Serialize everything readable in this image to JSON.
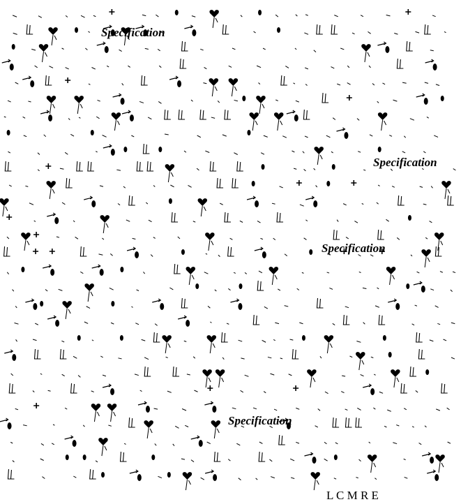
{
  "labels": {
    "spec_1": "Specification",
    "spec_2": "Specification",
    "spec_3": "Specification",
    "spec_4": "Specification"
  },
  "footer": {
    "text": "L   C  M  R E"
  },
  "colors": {
    "ink": "#000000",
    "background": "#ffffff"
  },
  "icons": [
    "heart-flower-icon",
    "arrow-bulb-icon",
    "bar-icon",
    "cross-icon",
    "tick-mark-icon"
  ]
}
